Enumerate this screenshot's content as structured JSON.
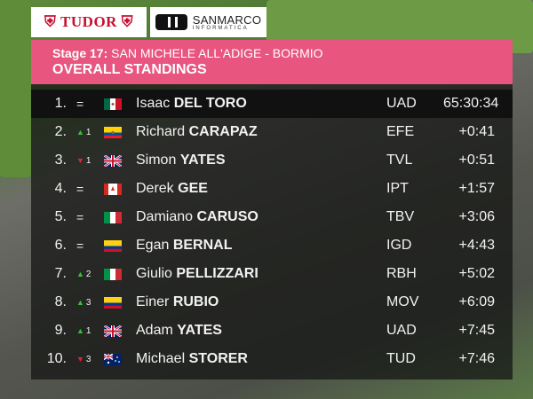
{
  "sponsors": [
    "TUDOR",
    "SANMARCO",
    "INFORMATICA"
  ],
  "header": {
    "stage_label": "Stage 17:",
    "route": "SAN MICHELE ALL'ADIGE - BORMIO",
    "title": "OVERALL STANDINGS",
    "color": "#e8557e"
  },
  "standings": [
    {
      "pos": "1.",
      "change": "=",
      "dir": "eq",
      "flag": "mexico",
      "first": "Isaac",
      "last": "DEL TORO",
      "team": "UAD",
      "time": "65:30:34"
    },
    {
      "pos": "2.",
      "change": "1",
      "dir": "up",
      "flag": "ecuador",
      "first": "Richard",
      "last": "CARAPAZ",
      "team": "EFE",
      "time": "+0:41"
    },
    {
      "pos": "3.",
      "change": "1",
      "dir": "down",
      "flag": "uk",
      "first": "Simon",
      "last": "YATES",
      "team": "TVL",
      "time": "+0:51"
    },
    {
      "pos": "4.",
      "change": "=",
      "dir": "eq",
      "flag": "canada",
      "first": "Derek",
      "last": "GEE",
      "team": "IPT",
      "time": "+1:57"
    },
    {
      "pos": "5.",
      "change": "=",
      "dir": "eq",
      "flag": "italy",
      "first": "Damiano",
      "last": "CARUSO",
      "team": "TBV",
      "time": "+3:06"
    },
    {
      "pos": "6.",
      "change": "=",
      "dir": "eq",
      "flag": "colombia",
      "first": "Egan",
      "last": "BERNAL",
      "team": "IGD",
      "time": "+4:43"
    },
    {
      "pos": "7.",
      "change": "2",
      "dir": "up",
      "flag": "italy",
      "first": "Giulio",
      "last": "PELLIZZARI",
      "team": "RBH",
      "time": "+5:02"
    },
    {
      "pos": "8.",
      "change": "3",
      "dir": "up",
      "flag": "colombia",
      "first": "Einer",
      "last": "RUBIO",
      "team": "MOV",
      "time": "+6:09"
    },
    {
      "pos": "9.",
      "change": "1",
      "dir": "up",
      "flag": "uk",
      "first": "Adam",
      "last": "YATES",
      "team": "UAD",
      "time": "+7:45"
    },
    {
      "pos": "10.",
      "change": "3",
      "dir": "down",
      "flag": "australia",
      "first": "Michael",
      "last": "STORER",
      "team": "TUD",
      "time": "+7:46"
    }
  ]
}
